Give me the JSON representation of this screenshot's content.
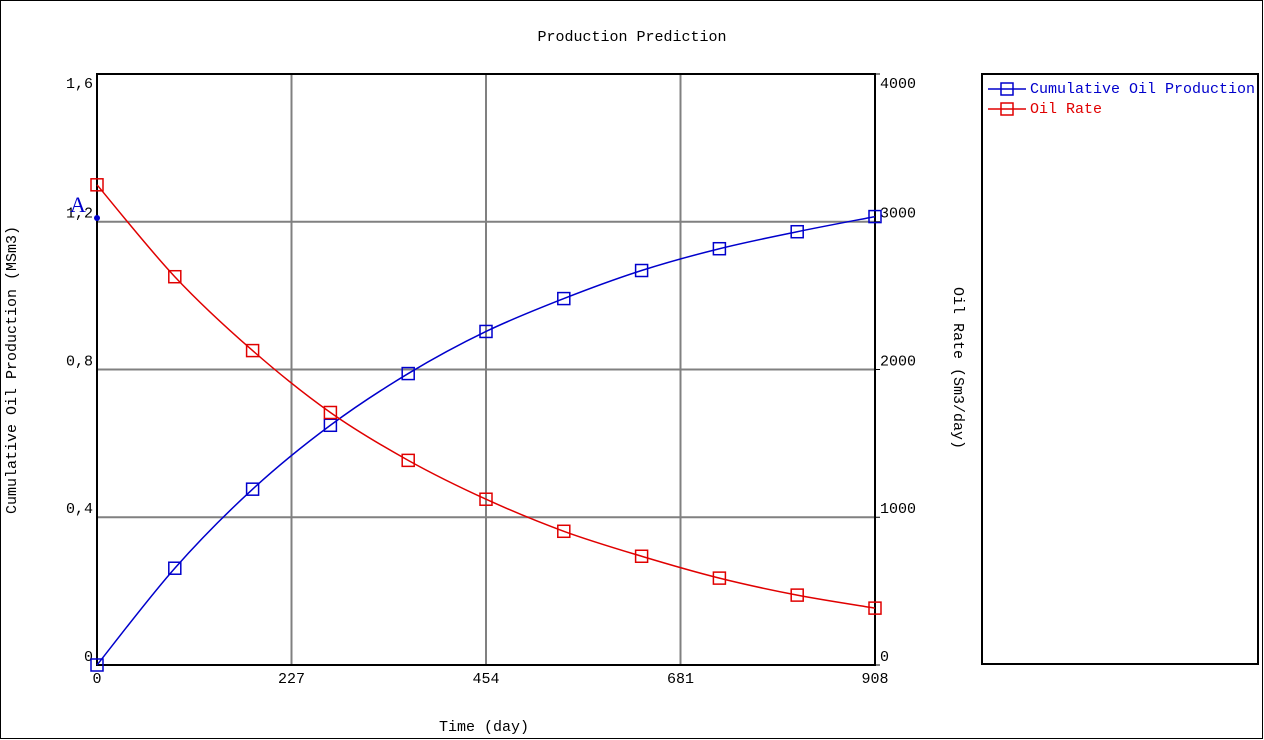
{
  "chart_data": {
    "type": "line",
    "title": "Production Prediction",
    "x_label": "Time (day)",
    "y_label": "Cumulative Oil Production (MSm3)",
    "y2_label": "Oil Rate (Sm3/day)",
    "annotation": "A",
    "x": [
      0,
      90.8,
      181.6,
      272.4,
      363.2,
      454,
      544.8,
      635.6,
      726.4,
      817.2,
      908
    ],
    "xlim": [
      0,
      908
    ],
    "xticks": [
      0,
      227,
      454,
      681,
      908
    ],
    "ylim": [
      0,
      1.6
    ],
    "yticks": [
      0,
      {
        "value": 0.4,
        "label": "0,4"
      },
      {
        "value": 0.8,
        "label": "0,8"
      },
      {
        "value": 1.2,
        "label": "1,2"
      },
      {
        "value": 1.6,
        "label": "1,6"
      }
    ],
    "y2lim": [
      0,
      4000
    ],
    "y2ticks": [
      0,
      1000,
      2000,
      3000,
      4000
    ],
    "grid": true,
    "series": [
      {
        "name": "Cumulative Oil Production",
        "color": "#0000cc",
        "axis": "y",
        "values": [
          0,
          0.262,
          0.476,
          0.649,
          0.789,
          0.903,
          0.992,
          1.068,
          1.127,
          1.173,
          1.214
        ]
      },
      {
        "name": "Oil Rate",
        "color": "#e00000",
        "axis": "y2",
        "values": [
          3250,
          2628,
          2128,
          1709,
          1385,
          1122,
          905,
          736,
          588,
          473,
          385
        ]
      }
    ]
  }
}
